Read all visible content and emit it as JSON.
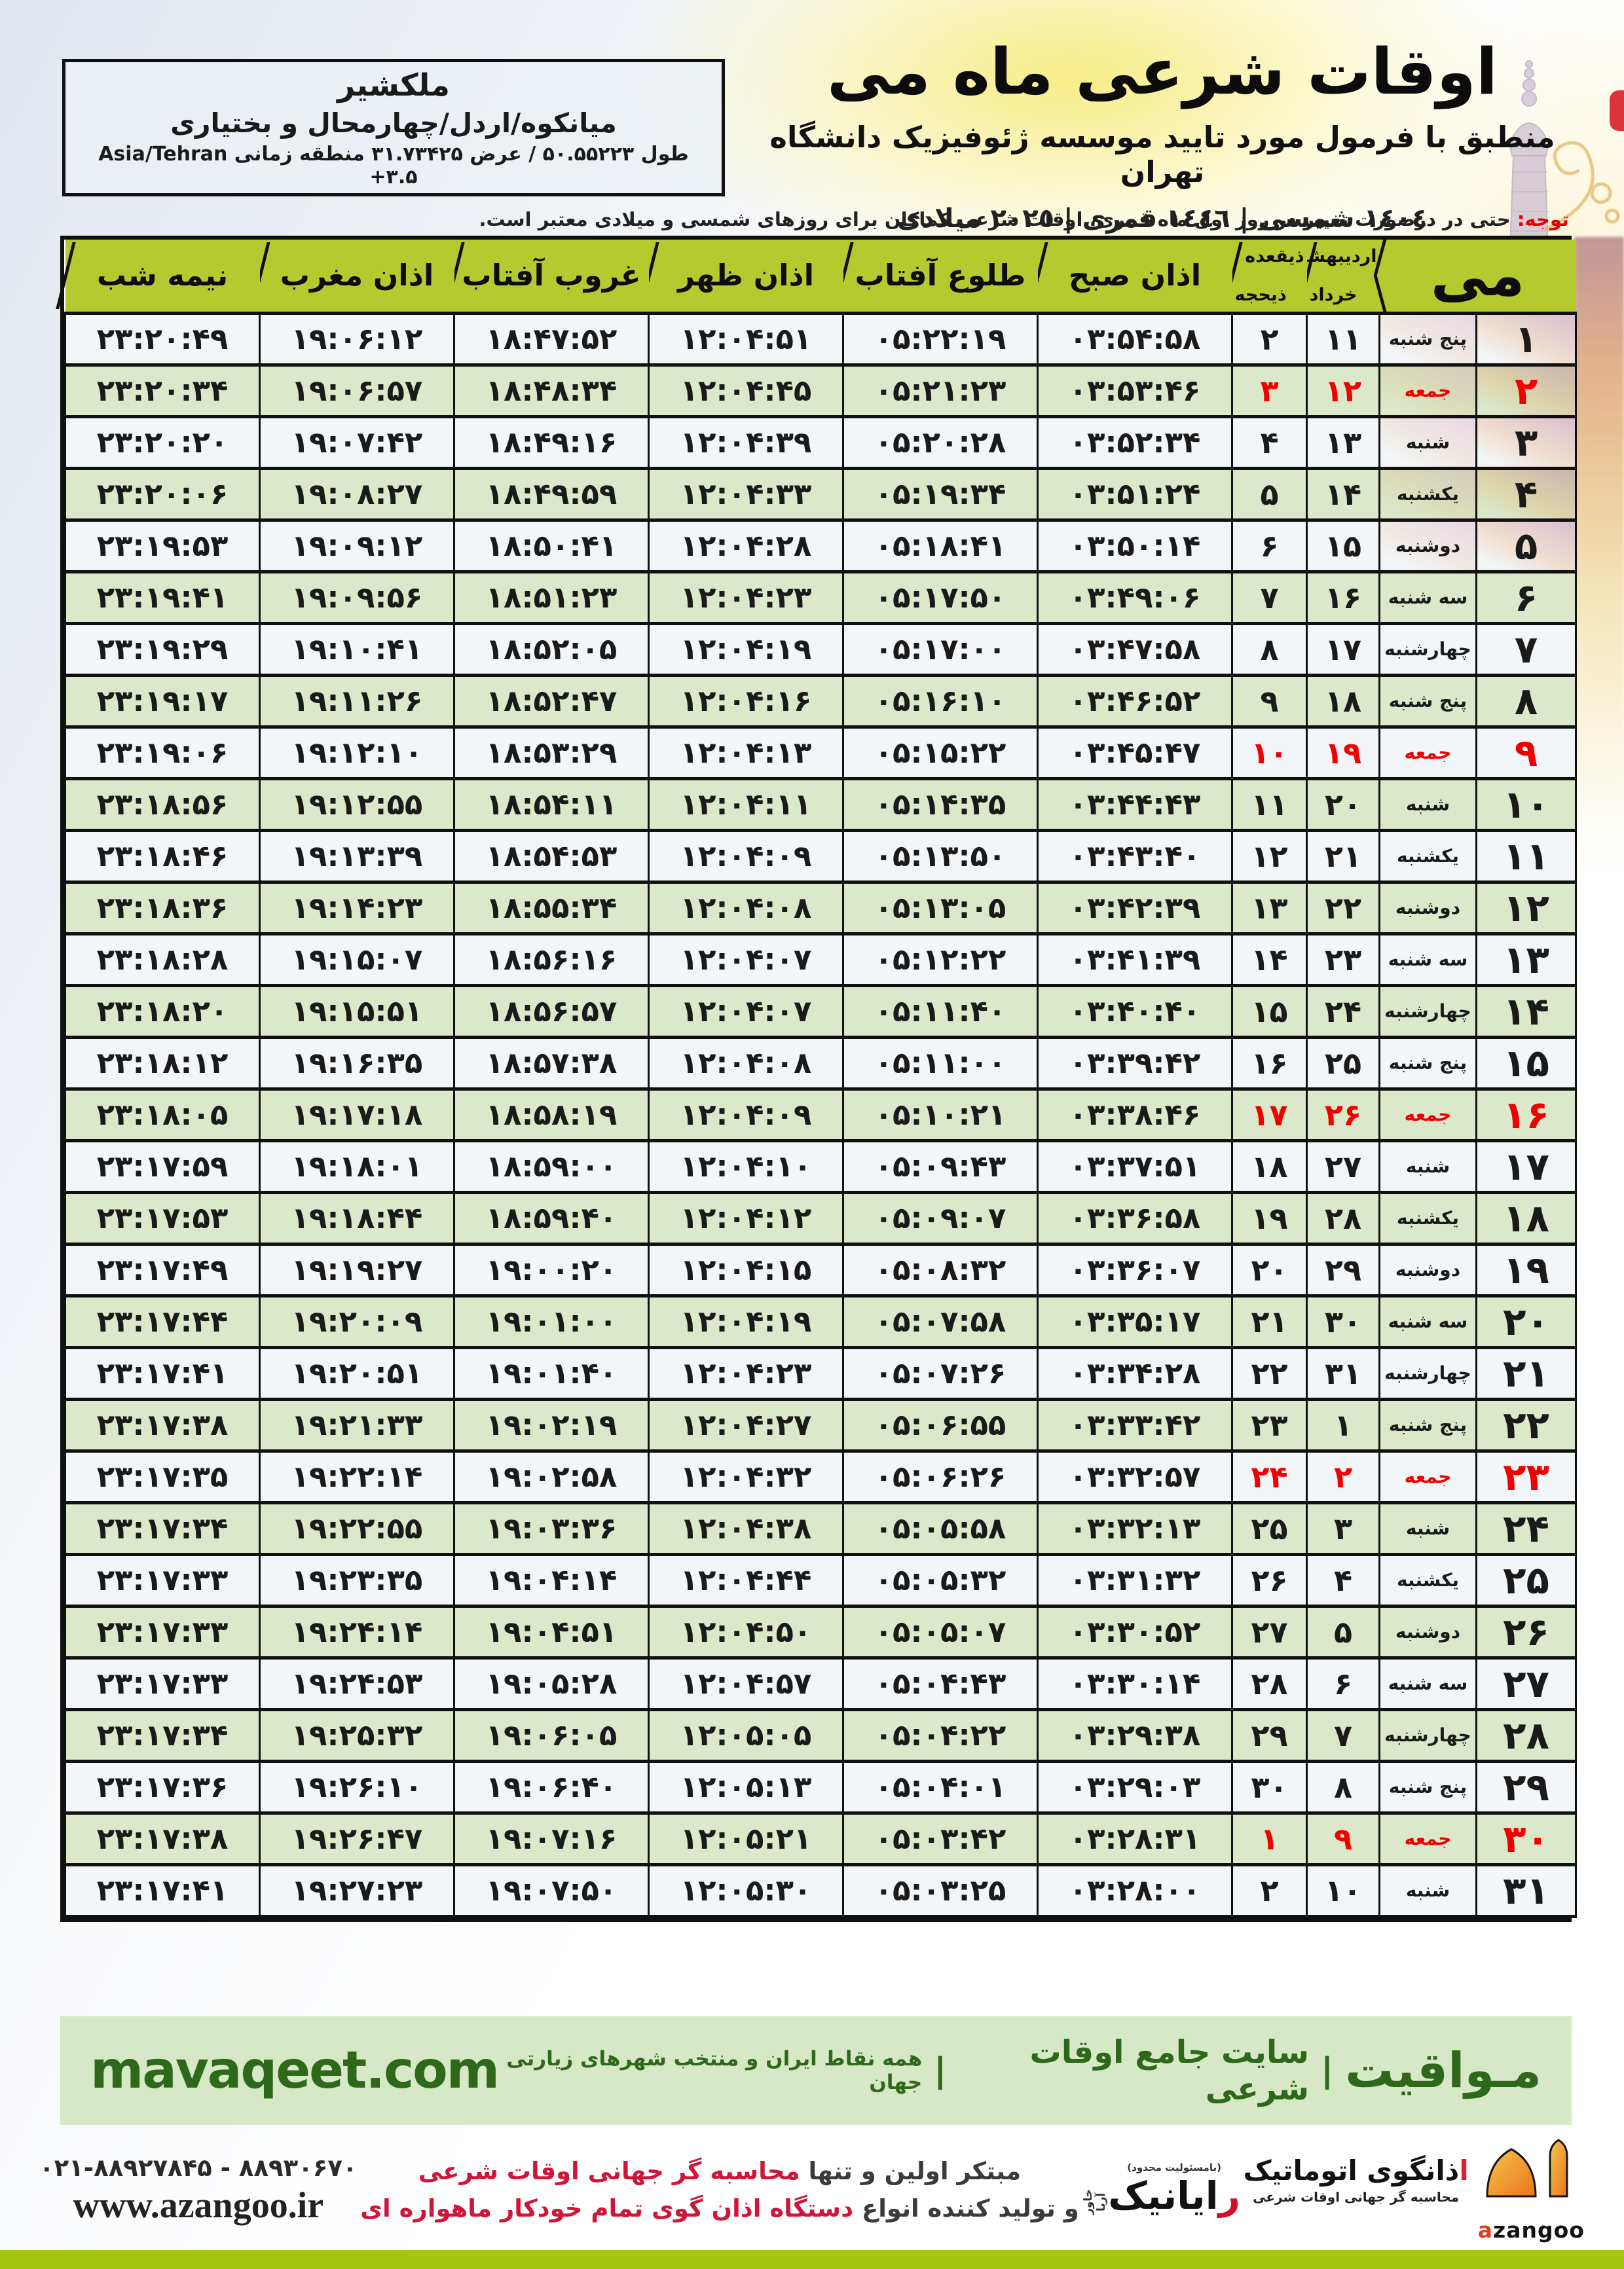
{
  "colors": {
    "header_green": "#b5ca2f",
    "row_green": "#dbe8c9",
    "row_white": "#f3f6f9",
    "friday_red": "#f20000",
    "notice_red": "#e60000",
    "border_black": "#101010",
    "footer_bg": "#d6e8c5",
    "footer_green": "#2e681b",
    "band_green": "#a6c50e",
    "accent_red": "#d01638"
  },
  "header": {
    "title": "اوقات شرعی ماه می",
    "subtitle": "منطبق با فرمول مورد تایید موسسه ژئوفیزیک دانشگاه تهران",
    "dates": "١٤٠٤ شمسی | ١٤٤٦ قمری | ٢٠٢٥ میلادی"
  },
  "location_box": {
    "city": "ملکشیر",
    "region": "میانکوه/اردل/چهارمحال و بختیاری",
    "coords": "طول ۵۰.۵۵۲۲۳ / عرض ۳۱.۷۳۴۲۵ منطقه زمانی Asia/Tehran +۳.۵"
  },
  "notice": {
    "label": "توجه:",
    "text": "حتی در درصورت تغییر در روز اول ماه قمری، اوقات شرعی کماکان برای روزهای شمسی و میلادی معتبر است."
  },
  "table": {
    "headers": {
      "may": "می",
      "jalali_top": "اردیبهشت",
      "jalali_bottom": "خرداد",
      "hijri_top": "ذیقعده",
      "hijri_bottom": "ذیحجه",
      "fajr": "اذان صبح",
      "sunrise": "طلوع آفتاب",
      "dhuhr": "اذان ظهر",
      "sunset": "غروب آفتاب",
      "maghrib": "اذان مغرب",
      "midnight": "نیمه شب"
    },
    "rows": [
      {
        "may": "۱",
        "day": "پنج شنبه",
        "jalali": "۱۱",
        "hijri": "۲",
        "fajr": "۰۳:۵۴:۵۸",
        "rise": "۰۵:۲۲:۱۹",
        "noon": "۱۲:۰۴:۵۱",
        "set": "۱۸:۴۷:۵۲",
        "magh": "۱۹:۰۶:۱۲",
        "mid": "۲۳:۲۰:۴۹",
        "fri": false
      },
      {
        "may": "۲",
        "day": "جمعه",
        "jalali": "۱۲",
        "hijri": "۳",
        "fajr": "۰۳:۵۳:۴۶",
        "rise": "۰۵:۲۱:۲۳",
        "noon": "۱۲:۰۴:۴۵",
        "set": "۱۸:۴۸:۳۴",
        "magh": "۱۹:۰۶:۵۷",
        "mid": "۲۳:۲۰:۳۴",
        "fri": true
      },
      {
        "may": "۳",
        "day": "شنبه",
        "jalali": "۱۳",
        "hijri": "۴",
        "fajr": "۰۳:۵۲:۳۴",
        "rise": "۰۵:۲۰:۲۸",
        "noon": "۱۲:۰۴:۳۹",
        "set": "۱۸:۴۹:۱۶",
        "magh": "۱۹:۰۷:۴۲",
        "mid": "۲۳:۲۰:۲۰",
        "fri": false
      },
      {
        "may": "۴",
        "day": "یکشنبه",
        "jalali": "۱۴",
        "hijri": "۵",
        "fajr": "۰۳:۵۱:۲۴",
        "rise": "۰۵:۱۹:۳۴",
        "noon": "۱۲:۰۴:۳۳",
        "set": "۱۸:۴۹:۵۹",
        "magh": "۱۹:۰۸:۲۷",
        "mid": "۲۳:۲۰:۰۶",
        "fri": false
      },
      {
        "may": "۵",
        "day": "دوشنبه",
        "jalali": "۱۵",
        "hijri": "۶",
        "fajr": "۰۳:۵۰:۱۴",
        "rise": "۰۵:۱۸:۴۱",
        "noon": "۱۲:۰۴:۲۸",
        "set": "۱۸:۵۰:۴۱",
        "magh": "۱۹:۰۹:۱۲",
        "mid": "۲۳:۱۹:۵۳",
        "fri": false
      },
      {
        "may": "۶",
        "day": "سه شنبه",
        "jalali": "۱۶",
        "hijri": "۷",
        "fajr": "۰۳:۴۹:۰۶",
        "rise": "۰۵:۱۷:۵۰",
        "noon": "۱۲:۰۴:۲۳",
        "set": "۱۸:۵۱:۲۳",
        "magh": "۱۹:۰۹:۵۶",
        "mid": "۲۳:۱۹:۴۱",
        "fri": false
      },
      {
        "may": "۷",
        "day": "چهارشنبه",
        "jalali": "۱۷",
        "hijri": "۸",
        "fajr": "۰۳:۴۷:۵۸",
        "rise": "۰۵:۱۷:۰۰",
        "noon": "۱۲:۰۴:۱۹",
        "set": "۱۸:۵۲:۰۵",
        "magh": "۱۹:۱۰:۴۱",
        "mid": "۲۳:۱۹:۲۹",
        "fri": false
      },
      {
        "may": "۸",
        "day": "پنج شنبه",
        "jalali": "۱۸",
        "hijri": "۹",
        "fajr": "۰۳:۴۶:۵۲",
        "rise": "۰۵:۱۶:۱۰",
        "noon": "۱۲:۰۴:۱۶",
        "set": "۱۸:۵۲:۴۷",
        "magh": "۱۹:۱۱:۲۶",
        "mid": "۲۳:۱۹:۱۷",
        "fri": false
      },
      {
        "may": "۹",
        "day": "جمعه",
        "jalali": "۱۹",
        "hijri": "۱۰",
        "fajr": "۰۳:۴۵:۴۷",
        "rise": "۰۵:۱۵:۲۲",
        "noon": "۱۲:۰۴:۱۳",
        "set": "۱۸:۵۳:۲۹",
        "magh": "۱۹:۱۲:۱۰",
        "mid": "۲۳:۱۹:۰۶",
        "fri": true
      },
      {
        "may": "۱۰",
        "day": "شنبه",
        "jalali": "۲۰",
        "hijri": "۱۱",
        "fajr": "۰۳:۴۴:۴۳",
        "rise": "۰۵:۱۴:۳۵",
        "noon": "۱۲:۰۴:۱۱",
        "set": "۱۸:۵۴:۱۱",
        "magh": "۱۹:۱۲:۵۵",
        "mid": "۲۳:۱۸:۵۶",
        "fri": false
      },
      {
        "may": "۱۱",
        "day": "یکشنبه",
        "jalali": "۲۱",
        "hijri": "۱۲",
        "fajr": "۰۳:۴۳:۴۰",
        "rise": "۰۵:۱۳:۵۰",
        "noon": "۱۲:۰۴:۰۹",
        "set": "۱۸:۵۴:۵۳",
        "magh": "۱۹:۱۳:۳۹",
        "mid": "۲۳:۱۸:۴۶",
        "fri": false
      },
      {
        "may": "۱۲",
        "day": "دوشنبه",
        "jalali": "۲۲",
        "hijri": "۱۳",
        "fajr": "۰۳:۴۲:۳۹",
        "rise": "۰۵:۱۳:۰۵",
        "noon": "۱۲:۰۴:۰۸",
        "set": "۱۸:۵۵:۳۴",
        "magh": "۱۹:۱۴:۲۳",
        "mid": "۲۳:۱۸:۳۶",
        "fri": false
      },
      {
        "may": "۱۳",
        "day": "سه شنبه",
        "jalali": "۲۳",
        "hijri": "۱۴",
        "fajr": "۰۳:۴۱:۳۹",
        "rise": "۰۵:۱۲:۲۲",
        "noon": "۱۲:۰۴:۰۷",
        "set": "۱۸:۵۶:۱۶",
        "magh": "۱۹:۱۵:۰۷",
        "mid": "۲۳:۱۸:۲۸",
        "fri": false
      },
      {
        "may": "۱۴",
        "day": "چهارشنبه",
        "jalali": "۲۴",
        "hijri": "۱۵",
        "fajr": "۰۳:۴۰:۴۰",
        "rise": "۰۵:۱۱:۴۰",
        "noon": "۱۲:۰۴:۰۷",
        "set": "۱۸:۵۶:۵۷",
        "magh": "۱۹:۱۵:۵۱",
        "mid": "۲۳:۱۸:۲۰",
        "fri": false
      },
      {
        "may": "۱۵",
        "day": "پنج شنبه",
        "jalali": "۲۵",
        "hijri": "۱۶",
        "fajr": "۰۳:۳۹:۴۲",
        "rise": "۰۵:۱۱:۰۰",
        "noon": "۱۲:۰۴:۰۸",
        "set": "۱۸:۵۷:۳۸",
        "magh": "۱۹:۱۶:۳۵",
        "mid": "۲۳:۱۸:۱۲",
        "fri": false
      },
      {
        "may": "۱۶",
        "day": "جمعه",
        "jalali": "۲۶",
        "hijri": "۱۷",
        "fajr": "۰۳:۳۸:۴۶",
        "rise": "۰۵:۱۰:۲۱",
        "noon": "۱۲:۰۴:۰۹",
        "set": "۱۸:۵۸:۱۹",
        "magh": "۱۹:۱۷:۱۸",
        "mid": "۲۳:۱۸:۰۵",
        "fri": true
      },
      {
        "may": "۱۷",
        "day": "شنبه",
        "jalali": "۲۷",
        "hijri": "۱۸",
        "fajr": "۰۳:۳۷:۵۱",
        "rise": "۰۵:۰۹:۴۳",
        "noon": "۱۲:۰۴:۱۰",
        "set": "۱۸:۵۹:۰۰",
        "magh": "۱۹:۱۸:۰۱",
        "mid": "۲۳:۱۷:۵۹",
        "fri": false
      },
      {
        "may": "۱۸",
        "day": "یکشنبه",
        "jalali": "۲۸",
        "hijri": "۱۹",
        "fajr": "۰۳:۳۶:۵۸",
        "rise": "۰۵:۰۹:۰۷",
        "noon": "۱۲:۰۴:۱۲",
        "set": "۱۸:۵۹:۴۰",
        "magh": "۱۹:۱۸:۴۴",
        "mid": "۲۳:۱۷:۵۳",
        "fri": false
      },
      {
        "may": "۱۹",
        "day": "دوشنبه",
        "jalali": "۲۹",
        "hijri": "۲۰",
        "fajr": "۰۳:۳۶:۰۷",
        "rise": "۰۵:۰۸:۳۲",
        "noon": "۱۲:۰۴:۱۵",
        "set": "۱۹:۰۰:۲۰",
        "magh": "۱۹:۱۹:۲۷",
        "mid": "۲۳:۱۷:۴۹",
        "fri": false
      },
      {
        "may": "۲۰",
        "day": "سه شنبه",
        "jalali": "۳۰",
        "hijri": "۲۱",
        "fajr": "۰۳:۳۵:۱۷",
        "rise": "۰۵:۰۷:۵۸",
        "noon": "۱۲:۰۴:۱۹",
        "set": "۱۹:۰۱:۰۰",
        "magh": "۱۹:۲۰:۰۹",
        "mid": "۲۳:۱۷:۴۴",
        "fri": false
      },
      {
        "may": "۲۱",
        "day": "چهارشنبه",
        "jalali": "۳۱",
        "hijri": "۲۲",
        "fajr": "۰۳:۳۴:۲۸",
        "rise": "۰۵:۰۷:۲۶",
        "noon": "۱۲:۰۴:۲۳",
        "set": "۱۹:۰۱:۴۰",
        "magh": "۱۹:۲۰:۵۱",
        "mid": "۲۳:۱۷:۴۱",
        "fri": false
      },
      {
        "may": "۲۲",
        "day": "پنج شنبه",
        "jalali": "۱",
        "hijri": "۲۳",
        "fajr": "۰۳:۳۳:۴۲",
        "rise": "۰۵:۰۶:۵۵",
        "noon": "۱۲:۰۴:۲۷",
        "set": "۱۹:۰۲:۱۹",
        "magh": "۱۹:۲۱:۳۳",
        "mid": "۲۳:۱۷:۳۸",
        "fri": false
      },
      {
        "may": "۲۳",
        "day": "جمعه",
        "jalali": "۲",
        "hijri": "۲۴",
        "fajr": "۰۳:۳۲:۵۷",
        "rise": "۰۵:۰۶:۲۶",
        "noon": "۱۲:۰۴:۳۲",
        "set": "۱۹:۰۲:۵۸",
        "magh": "۱۹:۲۲:۱۴",
        "mid": "۲۳:۱۷:۳۵",
        "fri": true
      },
      {
        "may": "۲۴",
        "day": "شنبه",
        "jalali": "۳",
        "hijri": "۲۵",
        "fajr": "۰۳:۳۲:۱۳",
        "rise": "۰۵:۰۵:۵۸",
        "noon": "۱۲:۰۴:۳۸",
        "set": "۱۹:۰۳:۳۶",
        "magh": "۱۹:۲۲:۵۵",
        "mid": "۲۳:۱۷:۳۴",
        "fri": false
      },
      {
        "may": "۲۵",
        "day": "یکشنبه",
        "jalali": "۴",
        "hijri": "۲۶",
        "fajr": "۰۳:۳۱:۳۲",
        "rise": "۰۵:۰۵:۳۲",
        "noon": "۱۲:۰۴:۴۴",
        "set": "۱۹:۰۴:۱۴",
        "magh": "۱۹:۲۳:۳۵",
        "mid": "۲۳:۱۷:۳۳",
        "fri": false
      },
      {
        "may": "۲۶",
        "day": "دوشنبه",
        "jalali": "۵",
        "hijri": "۲۷",
        "fajr": "۰۳:۳۰:۵۲",
        "rise": "۰۵:۰۵:۰۷",
        "noon": "۱۲:۰۴:۵۰",
        "set": "۱۹:۰۴:۵۱",
        "magh": "۱۹:۲۴:۱۴",
        "mid": "۲۳:۱۷:۳۳",
        "fri": false
      },
      {
        "may": "۲۷",
        "day": "سه شنبه",
        "jalali": "۶",
        "hijri": "۲۸",
        "fajr": "۰۳:۳۰:۱۴",
        "rise": "۰۵:۰۴:۴۳",
        "noon": "۱۲:۰۴:۵۷",
        "set": "۱۹:۰۵:۲۸",
        "magh": "۱۹:۲۴:۵۳",
        "mid": "۲۳:۱۷:۳۳",
        "fri": false
      },
      {
        "may": "۲۸",
        "day": "چهارشنبه",
        "jalali": "۷",
        "hijri": "۲۹",
        "fajr": "۰۳:۲۹:۳۸",
        "rise": "۰۵:۰۴:۲۲",
        "noon": "۱۲:۰۵:۰۵",
        "set": "۱۹:۰۶:۰۵",
        "magh": "۱۹:۲۵:۳۲",
        "mid": "۲۳:۱۷:۳۴",
        "fri": false
      },
      {
        "may": "۲۹",
        "day": "پنج شنبه",
        "jalali": "۸",
        "hijri": "۳۰",
        "fajr": "۰۳:۲۹:۰۳",
        "rise": "۰۵:۰۴:۰۱",
        "noon": "۱۲:۰۵:۱۳",
        "set": "۱۹:۰۶:۴۰",
        "magh": "۱۹:۲۶:۱۰",
        "mid": "۲۳:۱۷:۳۶",
        "fri": false
      },
      {
        "may": "۳۰",
        "day": "جمعه",
        "jalali": "۹",
        "hijri": "۱",
        "fajr": "۰۳:۲۸:۳۱",
        "rise": "۰۵:۰۳:۴۲",
        "noon": "۱۲:۰۵:۲۱",
        "set": "۱۹:۰۷:۱۶",
        "magh": "۱۹:۲۶:۴۷",
        "mid": "۲۳:۱۷:۳۸",
        "fri": true
      },
      {
        "may": "۳۱",
        "day": "شنبه",
        "jalali": "۱۰",
        "hijri": "۲",
        "fajr": "۰۳:۲۸:۰۰",
        "rise": "۰۵:۰۳:۲۵",
        "noon": "۱۲:۰۵:۳۰",
        "set": "۱۹:۰۷:۵۰",
        "magh": "۱۹:۲۷:۲۳",
        "mid": "۲۳:۱۷:۴۱",
        "fri": false
      }
    ]
  },
  "site_bar": {
    "brand": "مـواقیت",
    "sep": "|",
    "tagline1": "سایت جامع اوقات شرعی",
    "tagline2": "همه نقاط ایران و منتخب شهرهای زیارتی جهان",
    "domain": "mavaqeet.com"
  },
  "contact": {
    "phone": "۰۲۱-۸۸۹۲۷۸۴۵ - ۸۸۹۳۰۶۷۰",
    "url": "www.azangoo.ir",
    "line1_black": "مبتکر اولین و تنها ",
    "line1_red": "محاسبه گر جهانی اوقات شرعی",
    "line2_black": "و تولید کننده انواع ",
    "line2_red": "دستگاه اذان گوی تمام خودکار ماهواره ای",
    "rayanik_tiny": "(بامسئولیت محدود)",
    "rayanik_red": "ر",
    "rayanik_black": "ایانیک",
    "rayanik_vert": "خاور آریا",
    "azangoo_fa_red": "ا",
    "azangoo_fa_black": "ذانگوی اتوماتیک",
    "azangoo_fa_sub": "محاسبه گر جهانی اوقات شرعی",
    "azangoo_latin_red": "a",
    "azangoo_latin_black": "zangoo"
  }
}
